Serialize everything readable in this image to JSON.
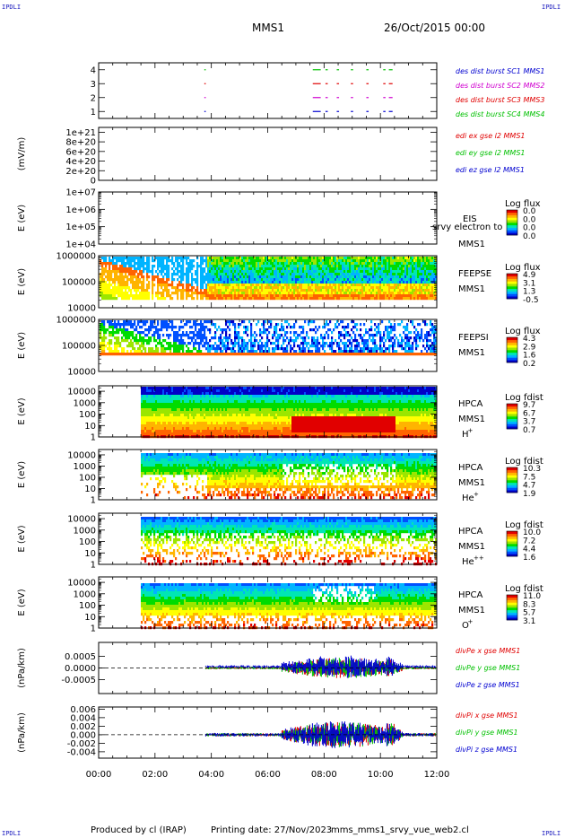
{
  "header": {
    "corner_label": "IPDLI",
    "mission": "MMS1",
    "date": "26/Oct/2015 00:00"
  },
  "footer": {
    "produced_by": "Produced by cl (IRAP)",
    "printing_date": "Printing date: 27/Nov/2023",
    "file": "mms_mms1_srvy_vue_web2.cl"
  },
  "colors": {
    "legend_blue": "#0000d0",
    "legend_magenta": "#d000d0",
    "legend_red": "#e00000",
    "legend_green": "#00c000",
    "spectrum": [
      "#0000c8",
      "#0050ff",
      "#00b4ff",
      "#00e6b4",
      "#00dc00",
      "#9be600",
      "#ffff00",
      "#ffb400",
      "#ff6400",
      "#e10000"
    ]
  },
  "chart_data": [
    {
      "id": "burst",
      "type": "line",
      "ylabel": "",
      "ylim": [
        0.5,
        4.5
      ],
      "yticks": [
        "1",
        "2",
        "3",
        "4"
      ],
      "series": [
        {
          "name": "des dist burst SC1 MMS1",
          "color": "#0000d0",
          "level": 1
        },
        {
          "name": "des dist burst SC2 MMS2",
          "color": "#d000d0",
          "level": 2
        },
        {
          "name": "des dist burst SC3 MMS3",
          "color": "#e00000",
          "level": 3
        },
        {
          "name": "des dist burst SC4 MMS4",
          "color": "#00c000",
          "level": 4
        }
      ],
      "segments_hours": [
        [
          3.75,
          3.77
        ],
        [
          7.6,
          7.85
        ],
        [
          8.05,
          8.1
        ],
        [
          8.45,
          8.5
        ],
        [
          8.95,
          9.0
        ],
        [
          9.5,
          9.55
        ],
        [
          10.1,
          10.15
        ],
        [
          10.3,
          10.4
        ]
      ]
    },
    {
      "id": "edi",
      "type": "line",
      "ylabel": "(mV/m)",
      "ylim": [
        0,
        1.1e+21
      ],
      "yticks": [
        "0",
        "2e+20",
        "4e+20",
        "6e+20",
        "8e+20",
        "1e+21"
      ],
      "series": [
        {
          "name": "edi ex gse l2 MMS1",
          "color": "#e00000"
        },
        {
          "name": "edi ey gse l2 MMS1",
          "color": "#00c000"
        },
        {
          "name": "edi ez gse l2 MMS1",
          "color": "#0000d0"
        }
      ]
    },
    {
      "id": "eis",
      "type": "heatmap",
      "ylabel": "E (eV)",
      "yscale": "log",
      "ylim": [
        10000,
        10000000
      ],
      "yticks": [
        "1e+04",
        "1e+05",
        "1e+06",
        "1e+07"
      ],
      "right_labels": [
        "EIS",
        "MMS1"
      ],
      "overlay_text": "srvy electron to",
      "colorbar": {
        "title": "Log flux",
        "ticks": [
          "0.0",
          "0.0",
          "0.0",
          "0.0"
        ]
      }
    },
    {
      "id": "feepse",
      "type": "heatmap",
      "ylabel": "E (eV)",
      "yscale": "log",
      "ylim": [
        10000,
        1000000
      ],
      "yticks": [
        "10000",
        "100000",
        "1000000"
      ],
      "right_labels": [
        "FEEPSE",
        "MMS1"
      ],
      "colorbar": {
        "title": "Log flux",
        "ticks": [
          "4.9",
          "3.1",
          "1.3",
          "-0.5"
        ]
      }
    },
    {
      "id": "feepsi",
      "type": "heatmap",
      "ylabel": "E (eV)",
      "yscale": "log",
      "ylim": [
        10000,
        1000000
      ],
      "yticks": [
        "10000",
        "100000",
        "1000000"
      ],
      "right_labels": [
        "FEEPSI",
        "MMS1"
      ],
      "colorbar": {
        "title": "Log flux",
        "ticks": [
          "4.3",
          "2.9",
          "1.6",
          "0.2"
        ]
      }
    },
    {
      "id": "hpca_h",
      "type": "heatmap",
      "ylabel": "E (eV)",
      "yscale": "log",
      "ylim": [
        1,
        30000
      ],
      "yticks": [
        "1",
        "10",
        "100",
        "1000",
        "10000"
      ],
      "right_labels": [
        "HPCA",
        "MMS1"
      ],
      "species": "H",
      "species_charge": "+",
      "colorbar": {
        "title": "Log fdist",
        "ticks": [
          "9.7",
          "6.7",
          "3.7",
          "0.7"
        ]
      }
    },
    {
      "id": "hpca_he",
      "type": "heatmap",
      "ylabel": "E (eV)",
      "yscale": "log",
      "ylim": [
        1,
        30000
      ],
      "yticks": [
        "1",
        "10",
        "100",
        "1000",
        "10000"
      ],
      "right_labels": [
        "HPCA",
        "MMS1"
      ],
      "species": "He",
      "species_charge": "+",
      "colorbar": {
        "title": "Log fdist",
        "ticks": [
          "10.3",
          "7.5",
          "4.7",
          "1.9"
        ]
      }
    },
    {
      "id": "hpca_hepp",
      "type": "heatmap",
      "ylabel": "E (eV)",
      "yscale": "log",
      "ylim": [
        1,
        30000
      ],
      "yticks": [
        "1",
        "10",
        "100",
        "1000",
        "10000"
      ],
      "right_labels": [
        "HPCA",
        "MMS1"
      ],
      "species": "He",
      "species_charge": "++",
      "colorbar": {
        "title": "Log fdist",
        "ticks": [
          "10.0",
          "7.2",
          "4.4",
          "1.6"
        ]
      }
    },
    {
      "id": "hpca_o",
      "type": "heatmap",
      "ylabel": "E (eV)",
      "yscale": "log",
      "ylim": [
        1,
        30000
      ],
      "yticks": [
        "1",
        "10",
        "100",
        "1000",
        "10000"
      ],
      "right_labels": [
        "HPCA",
        "MMS1"
      ],
      "species": "O",
      "species_charge": "+",
      "colorbar": {
        "title": "Log fdist",
        "ticks": [
          "11.0",
          "8.3",
          "5.7",
          "3.1"
        ]
      }
    },
    {
      "id": "divpe",
      "type": "line",
      "ylabel": "(nPa/km)",
      "ylim": [
        -0.0011,
        0.0011
      ],
      "yticks": [
        "-0.0005",
        "0.0000",
        "0.0005"
      ],
      "series": [
        {
          "name": "divPe x gse MMS1",
          "color": "#e00000"
        },
        {
          "name": "divPe y gse MMS1",
          "color": "#00c000"
        },
        {
          "name": "divPe z gse MMS1",
          "color": "#0000d0"
        }
      ]
    },
    {
      "id": "divpi",
      "type": "line",
      "ylabel": "(nPa/km)",
      "ylim": [
        -0.0055,
        0.0065
      ],
      "yticks": [
        "-0.004",
        "-0.002",
        "0.000",
        "0.002",
        "0.004",
        "0.006"
      ],
      "series": [
        {
          "name": "divPi x gse MMS1",
          "color": "#e00000"
        },
        {
          "name": "divPi y gse MMS1",
          "color": "#00c000"
        },
        {
          "name": "divPi z gse MMS1",
          "color": "#0000d0"
        }
      ]
    }
  ],
  "time_axis": {
    "xlim_hours": [
      0,
      12
    ],
    "ticks": [
      "00:00",
      "02:00",
      "04:00",
      "06:00",
      "08:00",
      "10:00",
      "12:00"
    ]
  }
}
